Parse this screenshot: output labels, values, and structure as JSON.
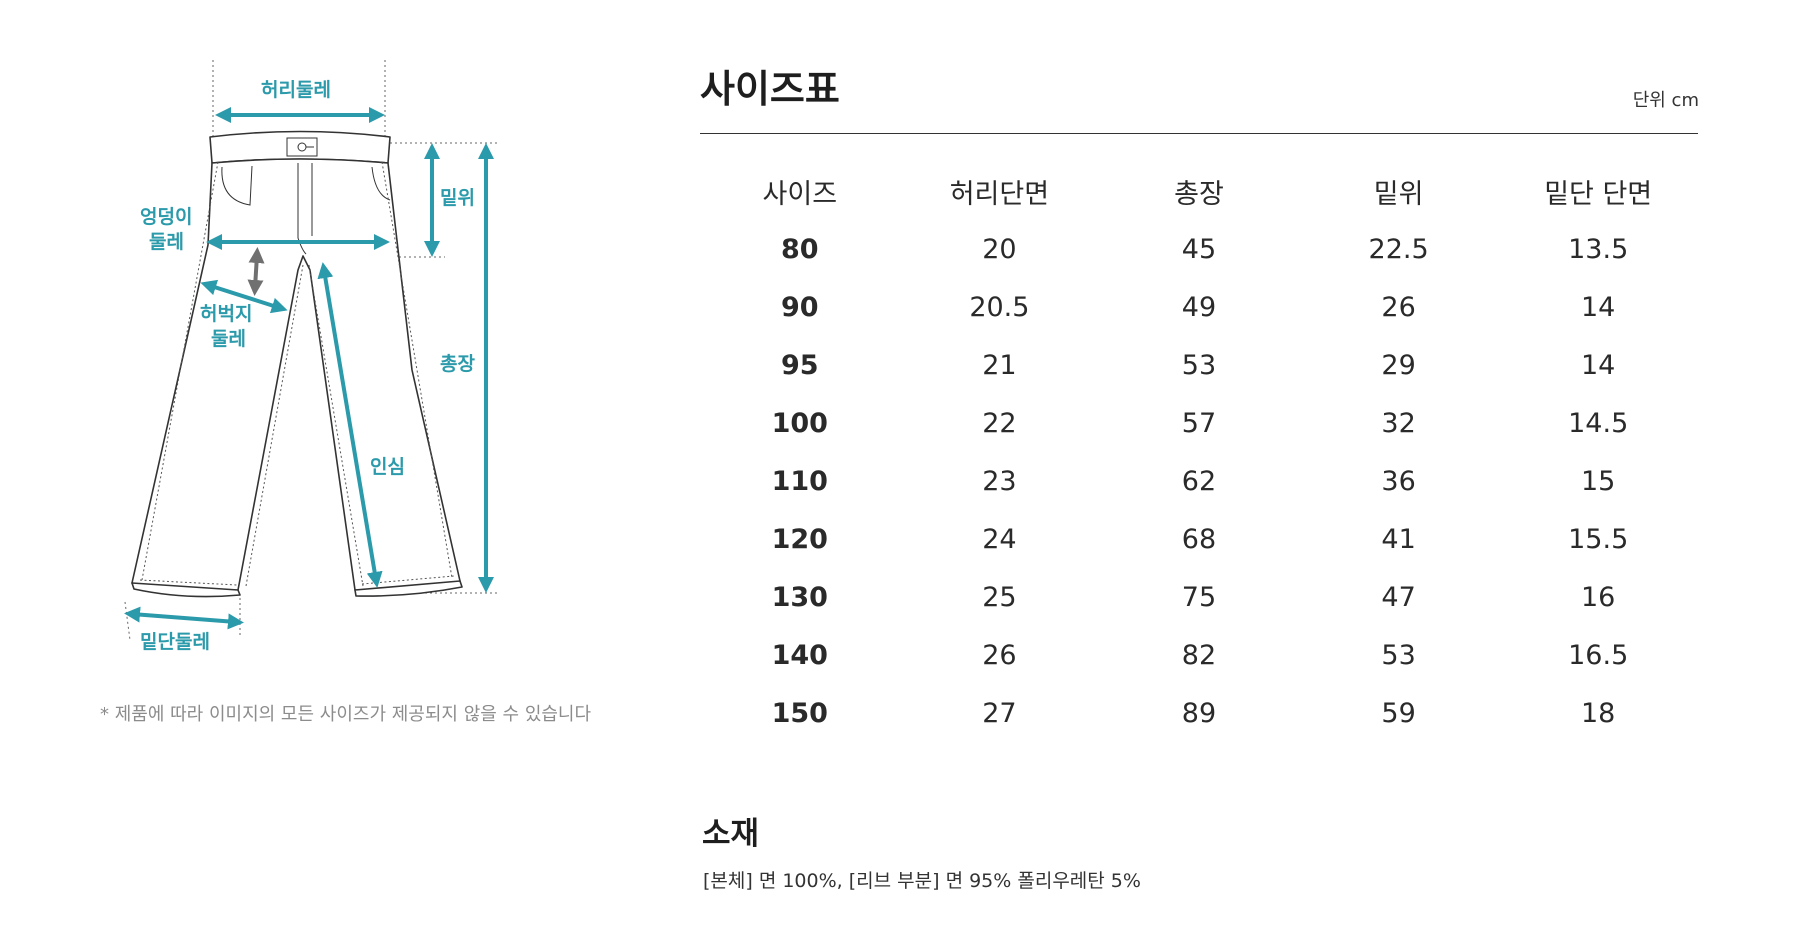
{
  "diagram": {
    "labels": {
      "waist": "허리둘레",
      "rise": "밑위",
      "hip_line1": "엉덩이",
      "hip_line2": "둘레",
      "thigh_line1": "허벅지",
      "thigh_line2": "둘레",
      "length": "총장",
      "inseam": "인심",
      "hem": "밑단둘레"
    },
    "note": "* 제품에 따라 이미지의 모든 사이즈가 제공되지 않을 수 있습니다",
    "colors": {
      "accent": "#2b9aaa",
      "outline": "#333333",
      "arrow_gray": "#707070"
    }
  },
  "size_chart": {
    "title": "사이즈표",
    "unit": "단위 cm",
    "columns": [
      "사이즈",
      "허리단면",
      "총장",
      "밑위",
      "밑단 단면"
    ],
    "rows": [
      [
        "80",
        "20",
        "45",
        "22.5",
        "13.5"
      ],
      [
        "90",
        "20.5",
        "49",
        "26",
        "14"
      ],
      [
        "95",
        "21",
        "53",
        "29",
        "14"
      ],
      [
        "100",
        "22",
        "57",
        "32",
        "14.5"
      ],
      [
        "110",
        "23",
        "62",
        "36",
        "15"
      ],
      [
        "120",
        "24",
        "68",
        "41",
        "15.5"
      ],
      [
        "130",
        "25",
        "75",
        "47",
        "16"
      ],
      [
        "140",
        "26",
        "82",
        "53",
        "16.5"
      ],
      [
        "150",
        "27",
        "89",
        "59",
        "18"
      ]
    ]
  },
  "material": {
    "title": "소재",
    "text": "[본체] 면 100%, [리브 부분] 면 95% 폴리우레탄 5%"
  }
}
